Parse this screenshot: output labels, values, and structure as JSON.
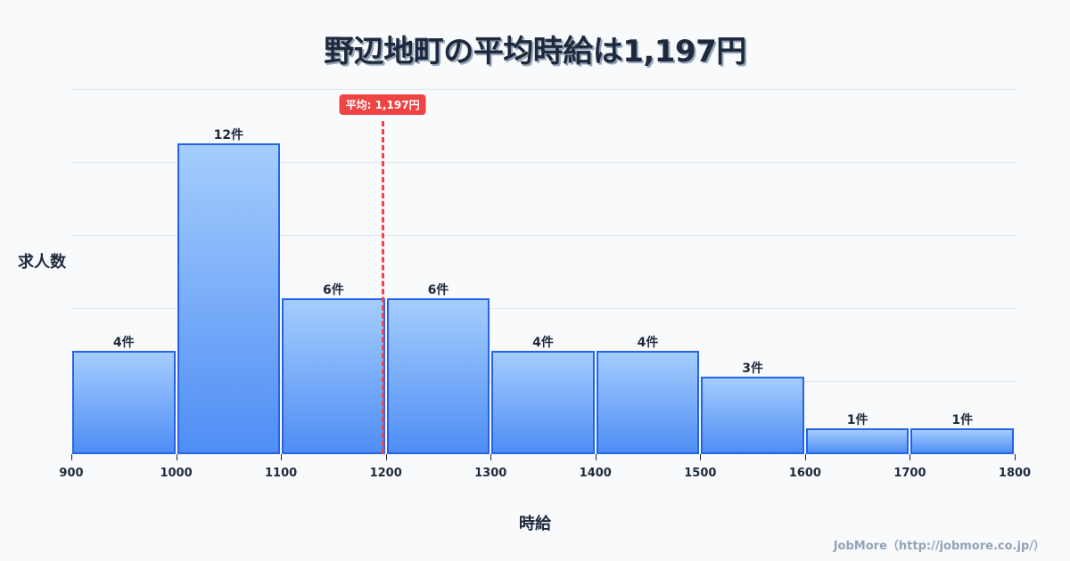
{
  "title": "野辺地町の平均時給は1,197円",
  "y_axis_label": "求人数",
  "x_axis_label": "時給",
  "credit": "JobMore（http://jobmore.co.jp/）",
  "mean_badge": "平均: 1,197円",
  "colors": {
    "bar_fill_top": "#a5cdfd",
    "bar_fill_bottom": "#4f8ef5",
    "bar_border": "#2563eb",
    "mean_line": "#ef4444",
    "title": "#1e293b"
  },
  "chart_data": {
    "type": "bar",
    "title": "野辺地町の平均時給は1,197円",
    "xlabel": "時給",
    "ylabel": "求人数",
    "bins": [
      [
        900,
        1000
      ],
      [
        1000,
        1100
      ],
      [
        1100,
        1200
      ],
      [
        1200,
        1300
      ],
      [
        1300,
        1400
      ],
      [
        1400,
        1500
      ],
      [
        1500,
        1600
      ],
      [
        1600,
        1700
      ],
      [
        1700,
        1800
      ]
    ],
    "categories": [
      "900-1000",
      "1000-1100",
      "1100-1200",
      "1200-1300",
      "1300-1400",
      "1400-1500",
      "1500-1600",
      "1600-1700",
      "1700-1800"
    ],
    "values": [
      4,
      12,
      6,
      6,
      4,
      4,
      3,
      1,
      1
    ],
    "value_labels": [
      "4件",
      "12件",
      "6件",
      "6件",
      "4件",
      "4件",
      "3件",
      "1件",
      "1件"
    ],
    "x_ticks": [
      "900",
      "1000",
      "1100",
      "1200",
      "1300",
      "1400",
      "1500",
      "1600",
      "1700",
      "1800"
    ],
    "xlim": [
      900,
      1800
    ],
    "mean": 1197,
    "mean_label": "平均: 1,197円",
    "grid": true,
    "legend": "none"
  }
}
